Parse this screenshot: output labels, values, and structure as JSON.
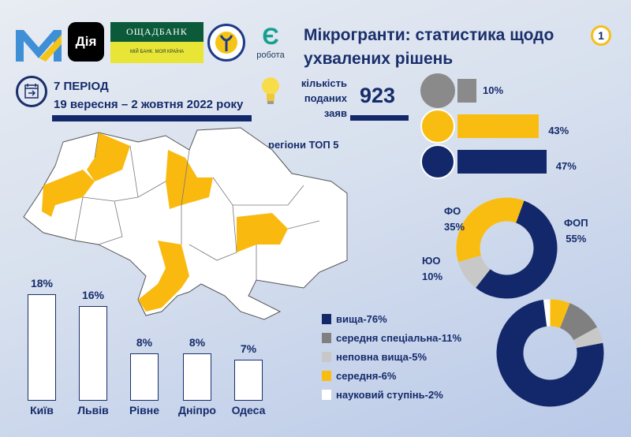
{
  "header": {
    "title_line1": "Мікрогранти: статистика щодо",
    "title_line2": "ухвалених рішень",
    "badge": "1"
  },
  "logos": {
    "diya": "Дія",
    "oschadbank_name": "ОЩАДБАНК",
    "oschadbank_slogan": "МІЙ БАНК. МОЯ КРАЇНА",
    "robota_symbol": "Є",
    "robota": "робота"
  },
  "period": {
    "label": "7 ПЕРІОД",
    "dates": "19 вересня – 2 жовтня 2022 року",
    "icon": "calendar-icon"
  },
  "applications": {
    "label_lines": [
      "кількість",
      "поданих",
      "заяв"
    ],
    "value": "923",
    "icon": "lightbulb-icon"
  },
  "regions_title": "регіони ТОП 5",
  "colors": {
    "navy": "#13286a",
    "yellow": "#f9bd12",
    "gray": "#8a8a8a",
    "lightgray": "#c8c8c8",
    "white": "#ffffff"
  },
  "chart_data": [
    {
      "type": "bar",
      "orientation": "horizontal",
      "categories": [
        "factory-icon",
        "woman-icon",
        "man-icon"
      ],
      "values": [
        10,
        43,
        47
      ],
      "labels": [
        "10%",
        "43%",
        "47%"
      ],
      "colors": [
        "#8a8a8a",
        "#f9bd12",
        "#13286a"
      ]
    },
    {
      "type": "pie",
      "donut": true,
      "slices": [
        {
          "name": "ФОП",
          "value": 55,
          "label": "55%",
          "color": "#13286a"
        },
        {
          "name": "ЮО",
          "value": 10,
          "label": "10%",
          "color": "#c8c8c8"
        },
        {
          "name": "ФО",
          "value": 35,
          "label": "35%",
          "color": "#f9bd12"
        }
      ]
    },
    {
      "type": "bar",
      "categories": [
        "Київ",
        "Львів",
        "Рівне",
        "Дніпро",
        "Одеса"
      ],
      "values": [
        18,
        16,
        8,
        8,
        7
      ],
      "labels": [
        "18%",
        "16%",
        "8%",
        "8%",
        "7%"
      ]
    },
    {
      "type": "pie",
      "donut": true,
      "legend": "left",
      "slices": [
        {
          "name": "середня-6%",
          "value": 6,
          "color": "#f9bd12"
        },
        {
          "name": "середня спеціальна-11%",
          "value": 11,
          "color": "#808080"
        },
        {
          "name": "неповна вища-5%",
          "value": 5,
          "color": "#c8c8c8"
        },
        {
          "name": "вища-76%",
          "value": 76,
          "color": "#13286a"
        },
        {
          "name": "науковий ступінь-2%",
          "value": 2,
          "color": "#ffffff"
        }
      ],
      "legend_order": [
        "вища-76%",
        "середня спеціальна-11%",
        "неповна вища-5%",
        "середня-6%",
        "науковий ступінь-2%"
      ]
    }
  ]
}
